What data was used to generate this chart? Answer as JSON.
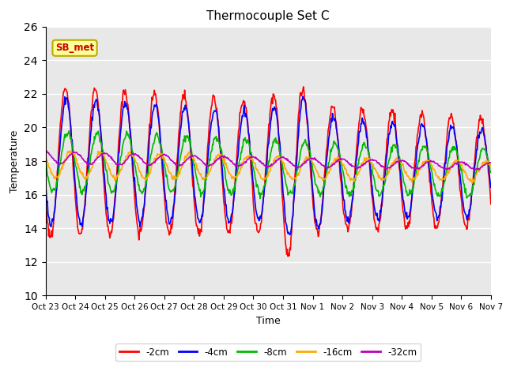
{
  "title": "Thermocouple Set C",
  "xlabel": "Time",
  "ylabel": "Temperature",
  "ylim": [
    10,
    26
  ],
  "yticks": [
    10,
    12,
    14,
    16,
    18,
    20,
    22,
    24,
    26
  ],
  "line_colors": {
    "-2cm": "#ff0000",
    "-4cm": "#0000ff",
    "-8cm": "#00bb00",
    "-16cm": "#ffaa00",
    "-32cm": "#bb00bb"
  },
  "annotation_text": "SB_met",
  "annotation_color": "#cc0000",
  "annotation_bg": "#ffff99",
  "annotation_border": "#bbaa00",
  "bg_color": "#e8e8e8",
  "x_tick_labels": [
    "Oct 23",
    "Oct 24",
    "Oct 25",
    "Oct 26",
    "Oct 27",
    "Oct 28",
    "Oct 29",
    "Oct 30",
    "Oct 31",
    "Nov 1",
    "Nov 2",
    "Nov 3",
    "Nov 4",
    "Nov 5",
    "Nov 6",
    "Nov 7"
  ],
  "line_width": 1.2,
  "legend_items": [
    "-2cm",
    "-4cm",
    "-8cm",
    "-16cm",
    "-32cm"
  ]
}
